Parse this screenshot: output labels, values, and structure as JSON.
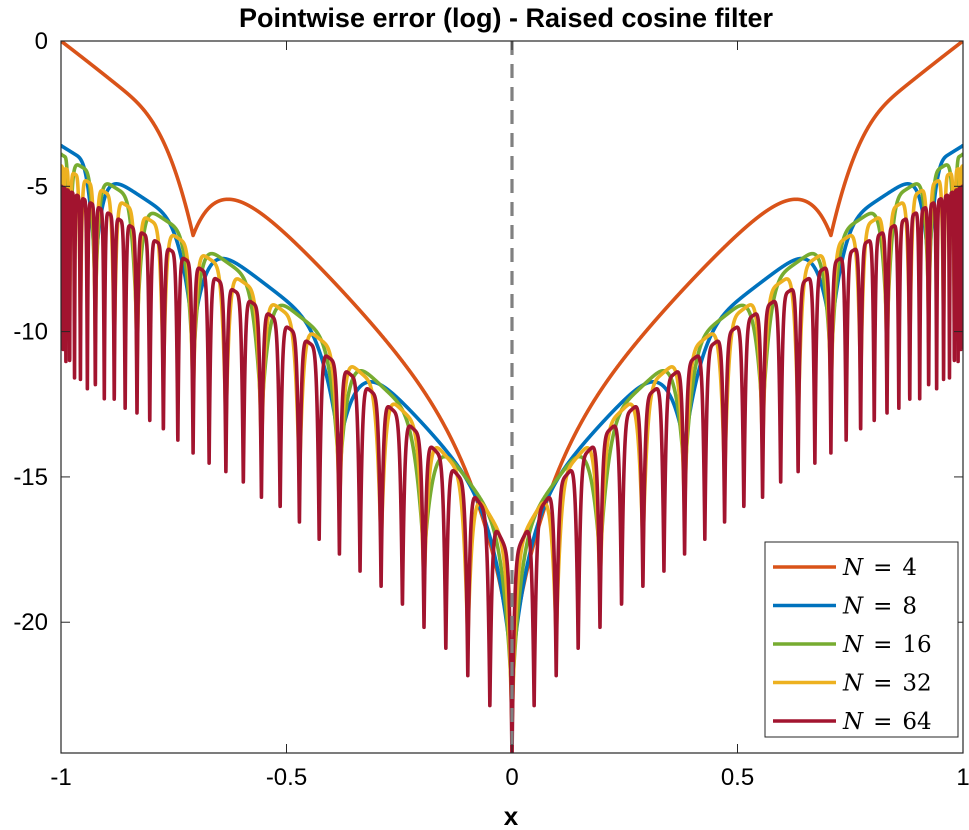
{
  "chart_data": {
    "type": "line",
    "title": "Pointwise error (log) - Raised cosine filter",
    "xlabel": "x",
    "ylabel": "",
    "xlim": [
      -1,
      1
    ],
    "ylim": [
      -24.5,
      0
    ],
    "xticks": [
      -1,
      -0.5,
      0,
      0.5,
      1
    ],
    "xtick_labels": [
      "-1",
      "-0.5",
      "0",
      "0.5",
      "1"
    ],
    "yticks": [
      0,
      -5,
      -10,
      -15,
      -20
    ],
    "ytick_labels": [
      "0",
      "-5",
      "-10",
      "-15",
      "-20"
    ],
    "grid": false,
    "legend_position": "bottom-right",
    "reference_line": {
      "x": 0,
      "style": "dashed",
      "color": "#808080"
    },
    "series": [
      {
        "name": "N = 4",
        "label_lhs": "N",
        "label_rhs": "4",
        "N": 4,
        "color": "#D95319",
        "envelope": {
          "edge": 0,
          "center": -18.3,
          "dip_depth": 3.0
        }
      },
      {
        "name": "N = 8",
        "label_lhs": "N",
        "label_rhs": "8",
        "N": 8,
        "color": "#0072BD",
        "envelope": {
          "edge": -3.6,
          "center": -18.3,
          "dip_depth": 3.5
        }
      },
      {
        "name": "N = 16",
        "label_lhs": "N",
        "label_rhs": "16",
        "N": 16,
        "color": "#77AC30",
        "envelope": {
          "edge": -3.9,
          "center": -18.3,
          "dip_depth": 4.5
        }
      },
      {
        "name": "N = 32",
        "label_lhs": "N",
        "label_rhs": "32",
        "N": 32,
        "color": "#EDB120",
        "envelope": {
          "edge": -4.3,
          "center": -18.3,
          "dip_depth": 5.5
        }
      },
      {
        "name": "N = 64",
        "label_lhs": "N",
        "label_rhs": "64",
        "N": 64,
        "color": "#A2142F",
        "envelope": {
          "edge": -5.0,
          "center": -18.3,
          "dip_depth": 6.5
        }
      }
    ]
  }
}
